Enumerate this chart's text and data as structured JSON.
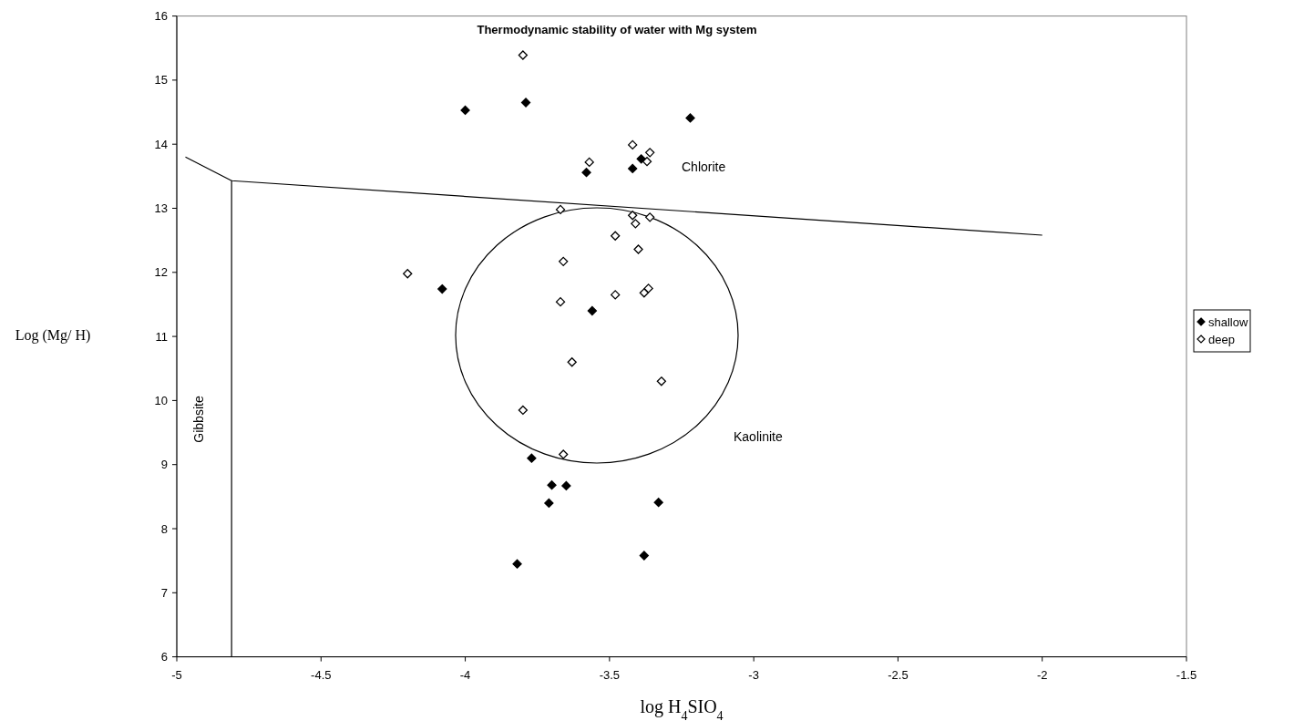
{
  "chart_data": {
    "type": "scatter",
    "title": "Thermodynamic stability of water with Mg system",
    "xlabel": "log H$_{4}$SIO$_{4}$",
    "ylabel": "Log (Mg/ H)",
    "xlim": [
      -5,
      -1.5
    ],
    "xticks": [
      -5,
      -4.5,
      -4,
      -3.5,
      -3,
      -2.5,
      -2,
      -1.5
    ],
    "ylim": [
      6,
      16
    ],
    "yticks": [
      6,
      7,
      8,
      9,
      10,
      11,
      12,
      13,
      14,
      15,
      16
    ],
    "marker": "diamond",
    "legend": "right",
    "series": [
      {
        "name": "shallow",
        "color": "#000000",
        "x": [
          -4.0,
          -3.79,
          -3.22,
          -3.58,
          -3.42,
          -3.39,
          -4.08,
          -3.56,
          -3.77,
          -3.7,
          -3.65,
          -3.71,
          -3.33,
          -3.82,
          -3.38
        ],
        "values": [
          14.53,
          14.65,
          14.41,
          13.56,
          13.62,
          13.77,
          11.74,
          11.4,
          9.1,
          8.68,
          8.67,
          8.4,
          8.41,
          7.45,
          7.58
        ]
      },
      {
        "name": "deep",
        "color": "#ffffff",
        "x": [
          -3.8,
          -3.42,
          -3.36,
          -3.37,
          -3.57,
          -3.67,
          -3.42,
          -3.36,
          -3.41,
          -3.48,
          -3.4,
          -3.66,
          -4.2,
          -3.67,
          -3.48,
          -3.38,
          -3.365,
          -3.63,
          -3.32,
          -3.8,
          -3.66
        ],
        "values": [
          15.39,
          13.99,
          13.87,
          13.73,
          13.72,
          12.98,
          12.89,
          12.86,
          12.76,
          12.57,
          12.36,
          12.17,
          11.98,
          11.54,
          11.65,
          11.68,
          11.75,
          10.6,
          10.3,
          9.85,
          9.16
        ]
      },
      {
        "type": "line",
        "color": "#000000",
        "marker": "none",
        "x": [
          -4.97,
          -4.81,
          -2.0
        ],
        "values": [
          13.8,
          13.43,
          12.58
        ]
      },
      {
        "type": "line",
        "color": "#000000",
        "marker": "none",
        "x": [
          -4.81,
          -4.81
        ],
        "values": [
          6,
          13.43
        ]
      }
    ],
    "annotations": [
      "Chlorite",
      "Kaolinite",
      "Gibbsite"
    ]
  }
}
